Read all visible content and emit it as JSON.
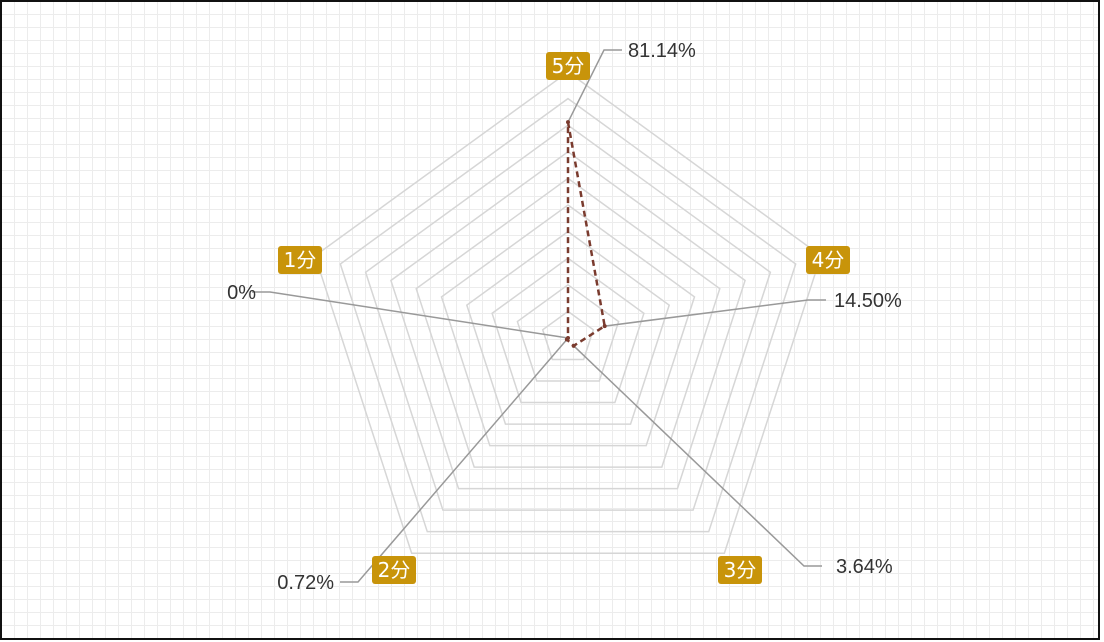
{
  "chart_data": {
    "type": "radar",
    "title": "",
    "indicators": [
      "5分",
      "4分",
      "3分",
      "2分",
      "1分"
    ],
    "values": [
      81.14,
      14.5,
      3.64,
      0.72,
      0
    ],
    "value_labels": [
      "81.14%",
      "14.50%",
      "3.64%",
      "0.72%",
      "0%"
    ],
    "max": 100,
    "rings": 10,
    "grid": true,
    "legend": "none",
    "colors": {
      "label_bg": "#c8940a",
      "series_line": "#7a3b2e",
      "ring": "#d6d6d6",
      "leader": "#999999"
    }
  }
}
